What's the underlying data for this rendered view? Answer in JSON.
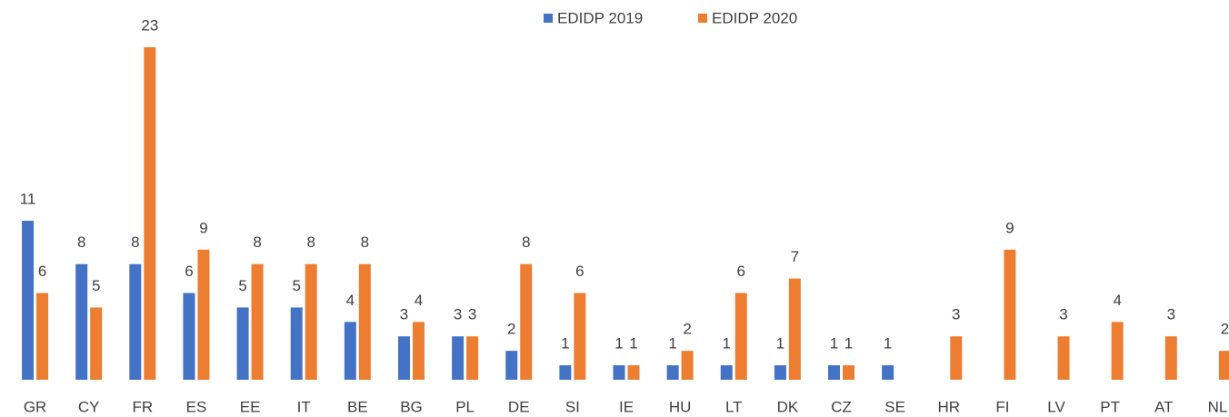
{
  "chart_data": {
    "type": "bar",
    "categories": [
      "GR",
      "CY",
      "FR",
      "ES",
      "EE",
      "IT",
      "BE",
      "BG",
      "PL",
      "DE",
      "SI",
      "IE",
      "HU",
      "LT",
      "DK",
      "CZ",
      "SE",
      "HR",
      "FI",
      "LV",
      "PT",
      "AT",
      "NL"
    ],
    "series": [
      {
        "name": "EDIDP 2019",
        "color": "#4472c4",
        "values": [
          11,
          8,
          8,
          6,
          5,
          5,
          4,
          3,
          3,
          2,
          1,
          1,
          1,
          1,
          1,
          1,
          1,
          null,
          null,
          null,
          null,
          null,
          null
        ]
      },
      {
        "name": "EDIDP 2020",
        "color": "#ed7d31",
        "values": [
          6,
          5,
          23,
          9,
          8,
          8,
          8,
          4,
          3,
          8,
          6,
          1,
          2,
          6,
          7,
          1,
          null,
          3,
          9,
          3,
          4,
          3,
          2
        ]
      }
    ],
    "legend": "top"
  }
}
